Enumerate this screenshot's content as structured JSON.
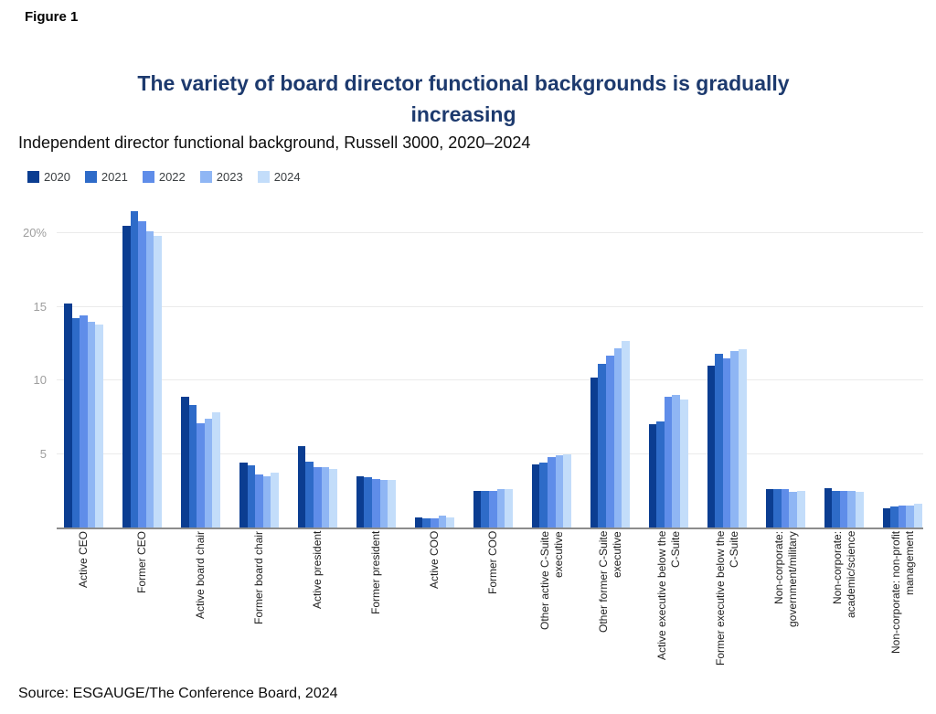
{
  "figure_label": "Figure 1",
  "header": {
    "title_display": "The variety of board director functional backgrounds is gradually\nincreasing",
    "subtitle": "Independent director functional background, Russell 3000, 2020–2024"
  },
  "source": "Source: ESGAUGE/The Conference Board, 2024",
  "colors": {
    "title_navy": "#1d3a6e",
    "gridline": "#ebebeb",
    "axis_line": "#8c8c8c",
    "tick_text": "#9e9e9e"
  },
  "chart_data": {
    "type": "bar",
    "title": "The variety of board director functional backgrounds is gradually increasing",
    "subtitle": "Independent director functional background, Russell 3000, 2020–2024",
    "xlabel": "",
    "ylabel": "",
    "ylim": [
      0,
      21.5
    ],
    "grid": true,
    "legend_position": "top-left",
    "y_ticks": [
      {
        "value": 5,
        "label": "5"
      },
      {
        "value": 10,
        "label": "10"
      },
      {
        "value": 15,
        "label": "15"
      },
      {
        "value": 20,
        "label": "20%"
      }
    ],
    "categories": [
      "Active CEO",
      "Former CEO",
      "Active board chair",
      "Former board chair",
      "Active president",
      "Former president",
      "Active COO",
      "Former COO",
      "Other active C-Suite\nexecutive",
      "Other former C-Suite\nexecutive",
      "Active executive below the\nC-Suite",
      "Former executive below the\nC-Suite",
      "Non-corporate:\ngovernment/military",
      "Non-corporate:\nacademic/science",
      "Non-corporate: non-profit\nmanagement"
    ],
    "series": [
      {
        "name": "2020",
        "color": "#0b3d91",
        "values": [
          15.2,
          20.5,
          8.9,
          4.4,
          5.5,
          3.5,
          0.7,
          2.5,
          4.3,
          10.2,
          7.0,
          11.0,
          2.6,
          2.7,
          1.3
        ]
      },
      {
        "name": "2021",
        "color": "#2e6bc8",
        "values": [
          14.2,
          21.5,
          8.3,
          4.2,
          4.5,
          3.4,
          0.6,
          2.5,
          4.4,
          11.1,
          7.2,
          11.8,
          2.6,
          2.5,
          1.4
        ]
      },
      {
        "name": "2022",
        "color": "#5f8de9",
        "values": [
          14.4,
          20.8,
          7.1,
          3.6,
          4.1,
          3.3,
          0.6,
          2.5,
          4.8,
          11.7,
          8.9,
          11.5,
          2.6,
          2.5,
          1.5
        ]
      },
      {
        "name": "2023",
        "color": "#8fb6f4",
        "values": [
          14.0,
          20.1,
          7.4,
          3.5,
          4.1,
          3.2,
          0.8,
          2.6,
          4.9,
          12.2,
          9.0,
          12.0,
          2.4,
          2.5,
          1.5
        ]
      },
      {
        "name": "2024",
        "color": "#c3ddfa",
        "values": [
          13.8,
          19.8,
          7.8,
          3.7,
          4.0,
          3.2,
          0.7,
          2.6,
          5.0,
          12.7,
          8.7,
          12.1,
          2.5,
          2.4,
          1.6
        ]
      }
    ]
  }
}
